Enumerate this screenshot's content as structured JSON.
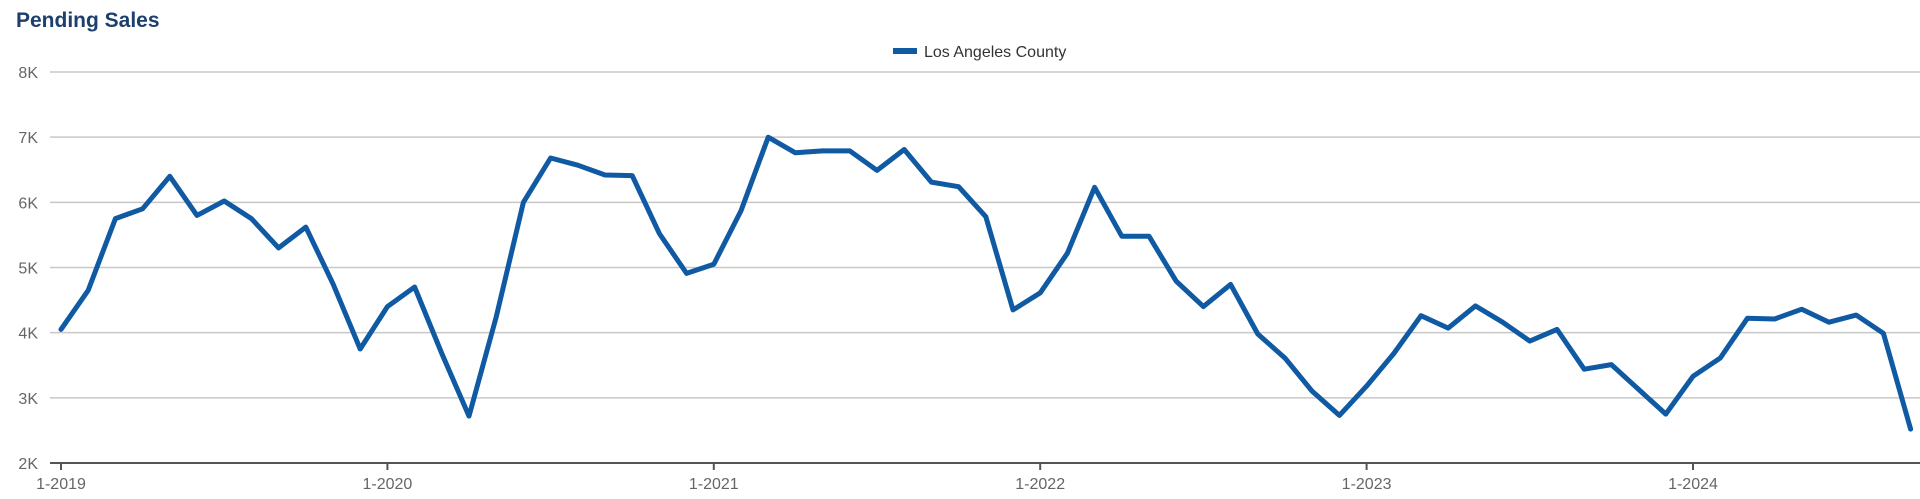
{
  "chart_data": {
    "type": "line",
    "title": "Pending Sales",
    "xlabel": "",
    "ylabel": "",
    "legend_position": "top-center",
    "grid": true,
    "ylim": [
      2000,
      8000
    ],
    "y_ticks": [
      2000,
      3000,
      4000,
      5000,
      6000,
      7000,
      8000
    ],
    "y_tick_labels": [
      "2K",
      "3K",
      "4K",
      "5K",
      "6K",
      "7K",
      "8K"
    ],
    "x_tick_labels": [
      "1-2019",
      "1-2020",
      "1-2021",
      "1-2022",
      "1-2023",
      "1-2024"
    ],
    "x_tick_indices": [
      0,
      12,
      24,
      36,
      48,
      60
    ],
    "series": [
      {
        "name": "Los Angeles County",
        "color": "#0f5aa3",
        "values": [
          4050,
          4650,
          5750,
          5900,
          6400,
          5800,
          6020,
          5750,
          5300,
          5620,
          4750,
          3750,
          4400,
          4700,
          3680,
          2720,
          4240,
          6000,
          6680,
          6570,
          6420,
          6410,
          5520,
          4910,
          5050,
          5870,
          7000,
          6760,
          6790,
          6790,
          6490,
          6810,
          6310,
          6240,
          5780,
          4350,
          4610,
          5220,
          6230,
          5480,
          5480,
          4790,
          4400,
          4740,
          3980,
          3610,
          3100,
          2730,
          3180,
          3680,
          4260,
          4070,
          4410,
          4160,
          3870,
          4050,
          3440,
          3510,
          3130,
          2750,
          3330,
          3610,
          4220,
          4210,
          4360,
          4160,
          4270,
          3990,
          2520
        ]
      }
    ]
  }
}
